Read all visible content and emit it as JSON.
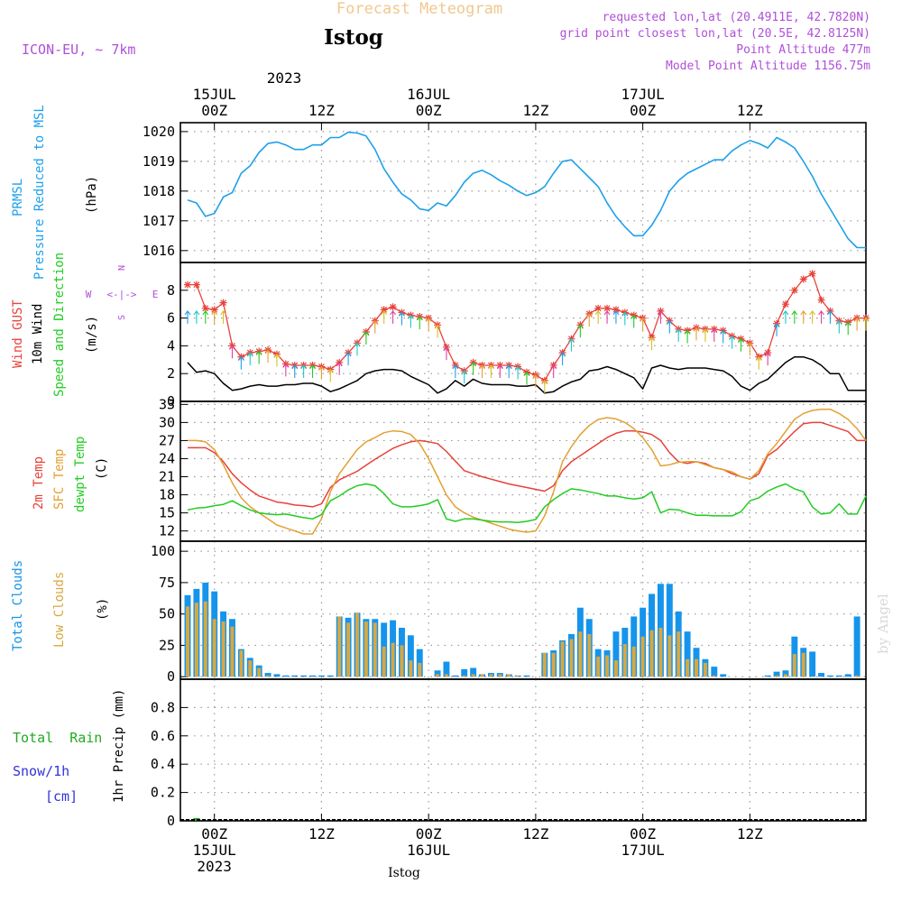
{
  "header": {
    "title": "Forecast Meteogram",
    "location": "Istog",
    "model": "ICON-EU, ~ 7km",
    "requested": "requested lon,lat (20.4911E, 42.7820N)",
    "grid": "grid point closest lon,lat (20.5E, 42.8125N)",
    "altitude": "Point Altitude 477m",
    "model_altitude": "Model Point Altitude 1156.75m",
    "watermark": "by Angel",
    "footer": "Istog"
  },
  "colors": {
    "pressure": "#1ea0ea",
    "gust": "#e8413a",
    "wind": "#000000",
    "temp": "#e8413a",
    "sfc": "#e3a032",
    "dew": "#22cc22",
    "total_cloud": "#1594ec",
    "low_cloud": "#d8a840",
    "rain": "#22aa22",
    "snow": "#3333dd",
    "purple": "#b04fd8",
    "title_orange": "#f0c890"
  },
  "time_axis": {
    "top_year": "2023",
    "top_labels": [
      {
        "h": 3,
        "l1": "00Z",
        "l2": "15JUL",
        "l3": "2023"
      },
      {
        "h": 15,
        "l1": "12Z",
        "l2": "",
        "l3": ""
      },
      {
        "h": 27,
        "l1": "00Z",
        "l2": "16JUL",
        "l3": ""
      },
      {
        "h": 39,
        "l1": "12Z",
        "l2": "",
        "l3": ""
      },
      {
        "h": 51,
        "l1": "00Z",
        "l2": "17JUL",
        "l3": ""
      },
      {
        "h": 63,
        "l1": "12Z",
        "l2": "",
        "l3": ""
      }
    ],
    "hours": 76
  },
  "panels": {
    "pressure": {
      "label1": "PRMSL",
      "label2": "Pressure Reduced to MSL",
      "unit": "(hPa)"
    },
    "wind": {
      "label1": "Wind GUST",
      "label2": "10m Wind",
      "label3": "Speed and Direction",
      "unit": "(m/s)",
      "compass_n": "N",
      "compass_s": "S",
      "compass_w": "W",
      "compass_e": "E",
      "compass_arrows": "<-|->"
    },
    "temp": {
      "label1": "2m Temp",
      "label2": "SFC Temp",
      "label3": "dewpt Temp",
      "unit": "(C)"
    },
    "cloud": {
      "label1": "Total Clouds",
      "label2": "Low Clouds",
      "unit": "(%)"
    },
    "precip": {
      "label1": "Total  Rain",
      "label2": "Snow/1h",
      "label3": "[cm]",
      "unit": "1hr Precip (mm)"
    }
  },
  "chart_data": [
    {
      "type": "line",
      "name": "PRMSL",
      "ylabel": "(hPa)",
      "ylim": [
        1015.6,
        1020.3
      ],
      "yticks": [
        1016,
        1017,
        1018,
        1019,
        1020
      ],
      "x": [
        0,
        1,
        2,
        3,
        4,
        5,
        6,
        7,
        8,
        9,
        10,
        11,
        12,
        13,
        14,
        15,
        16,
        17,
        18,
        19,
        20,
        21,
        22,
        23,
        24,
        25,
        26,
        27,
        28,
        29,
        30,
        31,
        32,
        33,
        34,
        35,
        36,
        37,
        38,
        39,
        40,
        41,
        42,
        43,
        44,
        45,
        46,
        47,
        48,
        49,
        50,
        51,
        52,
        53,
        54,
        55,
        56,
        57,
        58,
        59,
        60,
        61,
        62,
        63,
        64,
        65,
        66,
        67,
        68,
        69,
        70,
        71,
        72,
        73,
        74,
        75,
        76
      ],
      "values": [
        1017.7,
        1017.6,
        1017.15,
        1017.25,
        1017.8,
        1017.95,
        1018.6,
        1018.85,
        1019.3,
        1019.6,
        1019.65,
        1019.55,
        1019.4,
        1019.4,
        1019.55,
        1019.55,
        1019.8,
        1019.8,
        1019.98,
        1019.95,
        1019.85,
        1019.4,
        1018.75,
        1018.3,
        1017.9,
        1017.7,
        1017.4,
        1017.35,
        1017.6,
        1017.5,
        1017.85,
        1018.3,
        1018.6,
        1018.7,
        1018.55,
        1018.35,
        1018.2,
        1018.0,
        1017.85,
        1017.95,
        1018.15,
        1018.6,
        1019.0,
        1019.05,
        1018.75,
        1018.45,
        1018.15,
        1017.6,
        1017.15,
        1016.8,
        1016.5,
        1016.5,
        1016.85,
        1017.35,
        1018.0,
        1018.35,
        1018.6,
        1018.75,
        1018.9,
        1019.05,
        1019.05,
        1019.35,
        1019.55,
        1019.7,
        1019.6,
        1019.45,
        1019.8,
        1019.65,
        1019.45,
        1019.0,
        1018.5,
        1017.9,
        1017.4,
        1016.9,
        1016.4,
        1016.1,
        1016.1
      ]
    },
    {
      "type": "line",
      "name": "Wind",
      "ylabel": "(m/s)",
      "ylim": [
        0,
        10
      ],
      "yticks": [
        0,
        2,
        4,
        6,
        8
      ],
      "series": [
        {
          "name": "Wind GUST",
          "values": [
            8.4,
            8.4,
            6.7,
            6.6,
            7.1,
            4.0,
            3.2,
            3.5,
            3.6,
            3.7,
            3.4,
            2.7,
            2.6,
            2.6,
            2.6,
            2.5,
            2.3,
            2.8,
            3.5,
            4.2,
            5.0,
            5.8,
            6.6,
            6.8,
            6.4,
            6.2,
            6.1,
            6.0,
            5.5,
            3.9,
            2.6,
            2.2,
            2.8,
            2.6,
            2.6,
            2.6,
            2.6,
            2.5,
            2.1,
            1.9,
            1.5,
            2.6,
            3.5,
            4.5,
            5.5,
            6.3,
            6.7,
            6.7,
            6.6,
            6.4,
            6.2,
            6.0,
            4.6,
            6.5,
            5.8,
            5.2,
            5.1,
            5.3,
            5.2,
            5.2,
            5.1,
            4.7,
            4.5,
            4.2,
            3.2,
            3.5,
            5.6,
            7.0,
            8.0,
            8.8,
            9.2,
            7.3,
            6.5,
            5.8,
            5.7,
            6.0,
            6.0
          ]
        },
        {
          "name": "10m Wind",
          "values": [
            2.8,
            2.1,
            2.2,
            2.0,
            1.3,
            0.8,
            0.9,
            1.1,
            1.2,
            1.1,
            1.1,
            1.2,
            1.2,
            1.3,
            1.3,
            1.1,
            0.7,
            0.9,
            1.2,
            1.5,
            2.0,
            2.2,
            2.3,
            2.3,
            2.2,
            1.8,
            1.5,
            1.2,
            0.6,
            0.9,
            1.5,
            1.1,
            1.6,
            1.3,
            1.2,
            1.2,
            1.2,
            1.1,
            1.1,
            1.2,
            0.6,
            0.7,
            1.1,
            1.4,
            1.6,
            2.2,
            2.3,
            2.5,
            2.3,
            2.0,
            1.7,
            0.9,
            2.4,
            2.6,
            2.4,
            2.3,
            2.4,
            2.4,
            2.4,
            2.3,
            2.2,
            1.8,
            1.1,
            0.8,
            1.3,
            1.6,
            2.2,
            2.8,
            3.2,
            3.2,
            3.0,
            2.6,
            2.0,
            2.0,
            0.8,
            0.8,
            0.8
          ]
        }
      ]
    },
    {
      "type": "line",
      "name": "Temperature",
      "ylabel": "(C)",
      "ylim": [
        10.3,
        33.5
      ],
      "yticks": [
        12,
        15,
        18,
        21,
        24,
        27,
        30,
        33
      ],
      "series": [
        {
          "name": "2m Temp",
          "values": [
            25.8,
            25.8,
            25.8,
            25.0,
            23.5,
            21.5,
            20.0,
            18.8,
            17.8,
            17.3,
            16.8,
            16.6,
            16.3,
            16.2,
            16.0,
            16.5,
            19.2,
            20.5,
            21.2,
            21.9,
            22.9,
            23.9,
            24.8,
            25.7,
            26.3,
            26.8,
            27.0,
            26.8,
            26.5,
            25.2,
            23.6,
            22.0,
            21.5,
            21.0,
            20.6,
            20.2,
            19.8,
            19.5,
            19.2,
            18.9,
            18.6,
            19.5,
            22.0,
            23.5,
            24.5,
            25.5,
            26.5,
            27.5,
            28.2,
            28.6,
            28.6,
            28.4,
            28.0,
            27.0,
            25.0,
            23.5,
            23.2,
            23.5,
            23.2,
            22.5,
            22.2,
            21.5,
            21.0,
            20.6,
            21.5,
            24.5,
            25.5,
            27.0,
            28.5,
            29.8,
            30.0,
            30.0,
            29.5,
            29.0,
            28.5,
            27.0,
            27.0
          ]
        },
        {
          "name": "SFC Temp",
          "values": [
            27.0,
            27.0,
            26.8,
            25.5,
            23.0,
            20.0,
            17.5,
            16.0,
            15.0,
            14.0,
            13.0,
            12.5,
            12.0,
            11.5,
            11.5,
            14.0,
            18.5,
            21.5,
            23.5,
            25.5,
            26.8,
            27.5,
            28.3,
            28.6,
            28.5,
            28.0,
            26.5,
            24.0,
            21.0,
            18.0,
            16.0,
            15.0,
            14.3,
            13.8,
            13.3,
            12.8,
            12.3,
            12.0,
            11.8,
            12.0,
            14.5,
            18.5,
            23.5,
            26.0,
            28.0,
            29.5,
            30.5,
            30.8,
            30.6,
            30.0,
            29.0,
            27.5,
            25.5,
            22.8,
            23.0,
            23.4,
            23.5,
            23.5,
            23.0,
            22.5,
            22.2,
            21.8,
            21.0,
            20.6,
            22.0,
            24.8,
            26.5,
            28.5,
            30.5,
            31.5,
            32.0,
            32.2,
            32.2,
            31.5,
            30.5,
            29.0,
            27.0
          ]
        },
        {
          "name": "dewpt Temp",
          "values": [
            15.5,
            15.8,
            15.9,
            16.2,
            16.4,
            17.0,
            16.2,
            15.5,
            15.0,
            14.8,
            14.7,
            14.8,
            14.5,
            14.2,
            14.0,
            14.7,
            17.0,
            17.8,
            18.8,
            19.5,
            19.8,
            19.5,
            18.2,
            16.5,
            16.0,
            16.0,
            16.2,
            16.5,
            17.2,
            14.0,
            13.6,
            14.0,
            14.0,
            13.8,
            13.6,
            13.5,
            13.5,
            13.4,
            13.6,
            13.9,
            16.0,
            17.2,
            18.2,
            19.0,
            18.8,
            18.5,
            18.2,
            17.8,
            17.8,
            17.5,
            17.3,
            17.5,
            18.5,
            15.0,
            15.6,
            15.5,
            15.0,
            14.6,
            14.6,
            14.5,
            14.5,
            14.5,
            15.2,
            17.0,
            17.5,
            18.6,
            19.3,
            19.8,
            19.0,
            18.5,
            16.0,
            14.8,
            15.0,
            16.5,
            14.8,
            14.8,
            17.8
          ]
        }
      ]
    },
    {
      "type": "bar",
      "name": "Clouds",
      "ylabel": "(%)",
      "ylim": [
        -2,
        108
      ],
      "yticks": [
        0,
        25,
        50,
        75,
        100
      ],
      "series": [
        {
          "name": "Total Clouds",
          "values": [
            65,
            70,
            75,
            68,
            52,
            46,
            22,
            15,
            9,
            3,
            2,
            1,
            1,
            1,
            1,
            1,
            1,
            48,
            47,
            51,
            46,
            46,
            43,
            45,
            39,
            33,
            22,
            0,
            5,
            12,
            1,
            6,
            7,
            2,
            3,
            3,
            2,
            1,
            1,
            0,
            19,
            21,
            29,
            34,
            55,
            46,
            22,
            21,
            36,
            39,
            48,
            55,
            66,
            74,
            74,
            52,
            36,
            23,
            14,
            8,
            2,
            0,
            0,
            0,
            0,
            1,
            4,
            5,
            32,
            23,
            20,
            3,
            1,
            1,
            2,
            48,
            0
          ]
        },
        {
          "name": "Low Clouds",
          "values": [
            56,
            59,
            60,
            46,
            44,
            40,
            21,
            13,
            7,
            1,
            0,
            0,
            0,
            0,
            0,
            0,
            0,
            48,
            43,
            51,
            44,
            43,
            24,
            27,
            25,
            13,
            11,
            0,
            2,
            2,
            0,
            1,
            2,
            2,
            2,
            2,
            2,
            1,
            0,
            0,
            19,
            19,
            28,
            30,
            36,
            34,
            16,
            17,
            13,
            26,
            24,
            32,
            37,
            39,
            33,
            36,
            14,
            14,
            11,
            1,
            0,
            0,
            0,
            0,
            0,
            0,
            1,
            2,
            18,
            19,
            0,
            0,
            0,
            0,
            0,
            1,
            0
          ]
        }
      ]
    },
    {
      "type": "bar",
      "name": "Precipitation",
      "ylabel": "1hr Precip (mm)",
      "ylim": [
        0,
        1.0
      ],
      "yticks": [
        0,
        0.2,
        0.4,
        0.6,
        0.8
      ],
      "series": [
        {
          "name": "Total Rain",
          "values": [
            0,
            0.02,
            0,
            0,
            0,
            0,
            0,
            0,
            0,
            0,
            0,
            0,
            0,
            0,
            0,
            0,
            0,
            0,
            0,
            0,
            0,
            0,
            0,
            0,
            0,
            0,
            0,
            0,
            0,
            0,
            0,
            0,
            0,
            0,
            0,
            0,
            0,
            0,
            0,
            0,
            0,
            0,
            0,
            0,
            0,
            0,
            0,
            0,
            0,
            0,
            0,
            0,
            0,
            0,
            0,
            0,
            0,
            0,
            0,
            0,
            0,
            0,
            0,
            0,
            0,
            0,
            0,
            0,
            0,
            0,
            0,
            0,
            0,
            0,
            0,
            0,
            0
          ]
        }
      ]
    }
  ]
}
